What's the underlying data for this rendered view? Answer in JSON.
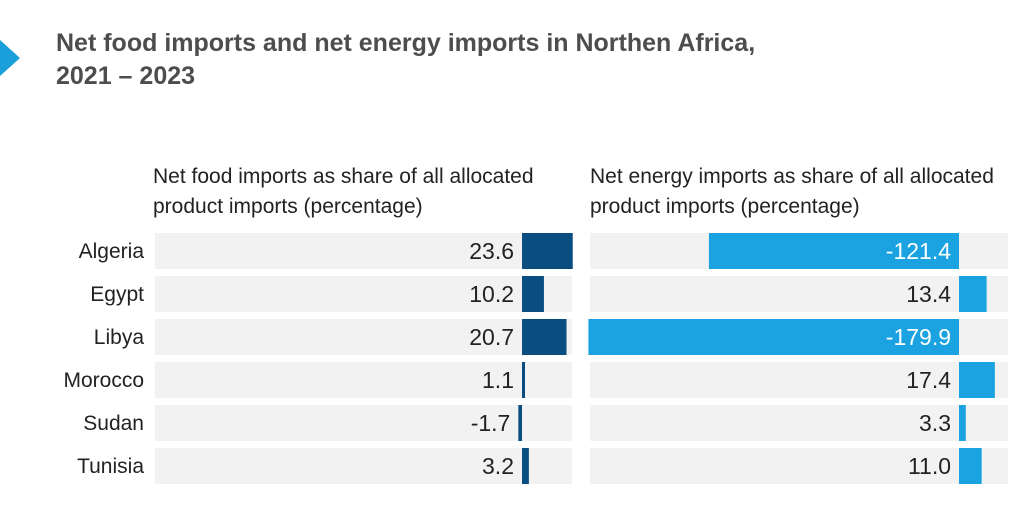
{
  "header": {
    "title_line1": "Net food imports and net energy imports in Northen Africa,",
    "title_line2": "2021 – 2023",
    "marker_icon": "chevron-right-icon",
    "marker_color": "#1a9fdb"
  },
  "chart_data": [
    {
      "type": "bar",
      "orientation": "horizontal",
      "header_line1": "Net food imports as share of all allocated",
      "header_line2": "product imports (percentage)",
      "categories": [
        "Algeria",
        "Egypt",
        "Libya",
        "Morocco",
        "Sudan",
        "Tunisia"
      ],
      "values": [
        23.6,
        10.2,
        20.7,
        1.1,
        -1.7,
        3.2
      ],
      "value_labels": [
        "23.6",
        "10.2",
        "20.7",
        "1.1",
        "-1.7",
        "3.2"
      ],
      "bar_color": "#0a4d80",
      "row_background": "#f2f2f2"
    },
    {
      "type": "bar",
      "orientation": "horizontal",
      "header_line1": "Net energy imports as share of all allocated",
      "header_line2": "product imports (percentage)",
      "categories": [
        "Algeria",
        "Egypt",
        "Libya",
        "Morocco",
        "Sudan",
        "Tunisia"
      ],
      "values": [
        -121.4,
        13.4,
        -179.9,
        17.4,
        3.3,
        11.0
      ],
      "value_labels": [
        "-121.4",
        "13.4",
        "-179.9",
        "17.4",
        "3.3",
        "11.0"
      ],
      "bar_color": "#1aa3e0",
      "row_background": "#f2f2f2"
    }
  ]
}
